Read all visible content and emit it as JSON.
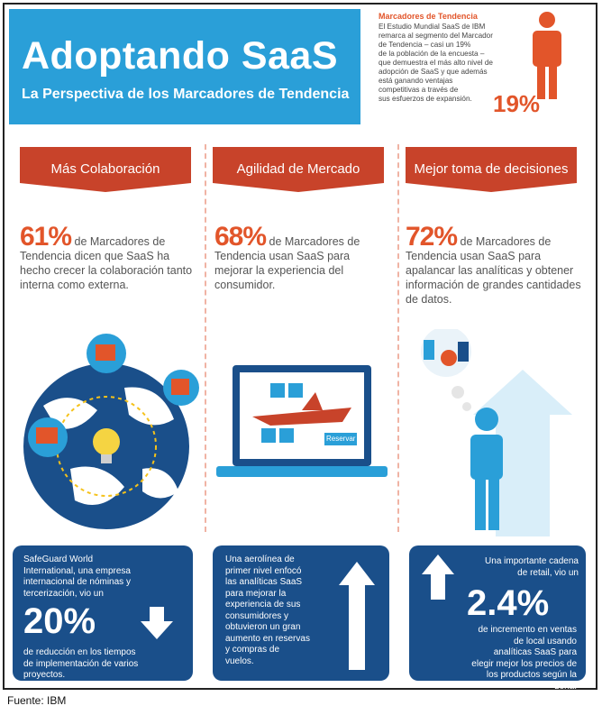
{
  "header": {
    "title": "Adoptando SaaS",
    "subtitle": "La Perspectiva de los Marcadores de Tendencia"
  },
  "intro": {
    "heading": "Marcadores de Tendencia",
    "lines": [
      "El Estudio Mundial SaaS de IBM",
      "remarca al segmento del Marcador",
      "de Tendencia – casi un 19%",
      "de la población de la encuesta –",
      "que demuestra el más alto nivel de",
      "adopción de SaaS y que además",
      "está ganando ventajas",
      "competitivas a través de",
      "sus esfuerzos de expansión."
    ],
    "percent": "19%"
  },
  "columns": [
    {
      "banner": "Más Colaboración",
      "percent": "61%",
      "text": " de Marcadores de Tendencia dicen que SaaS ha hecho crecer la colaboración tanto interna como externa.",
      "card_lines": [
        "SafeGuard World",
        "International, una empresa",
        "internacional de nóminas y",
        "tercerización, vio un"
      ],
      "card_big": "20%",
      "card_after": [
        "de reducción en los tiempos",
        "de implementación de varios",
        "proyectos."
      ]
    },
    {
      "banner": "Agilidad de Mercado",
      "percent": "68%",
      "text": " de Marcadores de Tendencia usan SaaS para mejorar la experiencia del consumidor.",
      "card_lines": [
        "Una aerolínea de",
        "primer nivel enfocó",
        "las analíticas SaaS",
        "para mejorar la",
        "experiencia de sus",
        "consumidores y",
        "obtuvieron un gran",
        "aumento en reservas",
        "y compras de",
        "vuelos."
      ],
      "screen_button": "Reservar"
    },
    {
      "banner": "Mejor toma de decisiones",
      "percent": "72%",
      "text": " de Marcadores de Tendencia usan SaaS para apalancar las analíticas y obtener información de grandes cantidades de datos.",
      "card_lines": [
        "Una importante cadena",
        "de retail, vio un"
      ],
      "card_big": "2.4%",
      "card_after": [
        "de incremento en ventas",
        "de local usando",
        "analíticas SaaS para",
        "elegir mejor los precios de",
        "los productos según la",
        "zona."
      ]
    }
  ],
  "footer": {
    "source": "Fuente: IBM"
  },
  "colors": {
    "blue": "#2a9fd8",
    "navy": "#1a4f8a",
    "orange": "#e2552a",
    "red_banner": "#c8432a"
  }
}
